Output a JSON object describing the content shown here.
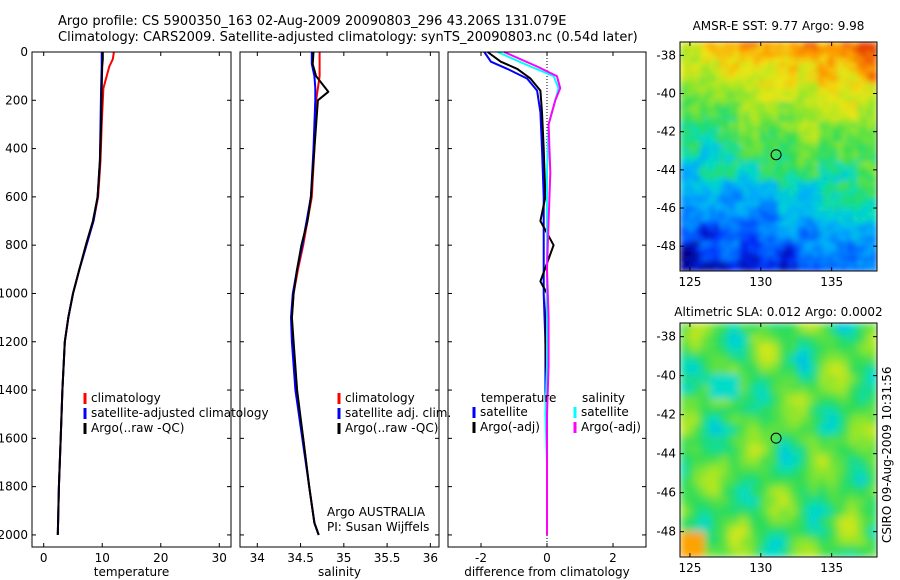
{
  "header": {
    "line1": "Argo profile: CS 5900350_163 02-Aug-2009 20090803_296 43.206S 131.079E",
    "line2": "Climatology: CARS2009. Satellite-adjusted climatology: synTS_20090803.nc (0.54d later)"
  },
  "side_stamp": "CSIRO 09-Aug-2009 10:31:56",
  "colors": {
    "climatology": "#ff0000",
    "satellite": "#0000ff",
    "argo": "#000000",
    "salinity_satellite": "#00ffff",
    "salinity_argo": "#ff00ff"
  },
  "chart_data": [
    {
      "type": "line",
      "id": "temperature",
      "xlabel": "temperature",
      "ylabel": "",
      "xlim": [
        -2,
        32
      ],
      "ylim": [
        2050,
        0
      ],
      "xticks": [
        0,
        10,
        20,
        30
      ],
      "yticks": [
        0,
        200,
        400,
        600,
        800,
        1000,
        1200,
        1400,
        1600,
        1800,
        2000
      ],
      "legend": [
        "climatology",
        "satellite-adjusted climatology",
        "Argo(..raw -QC)"
      ],
      "series": [
        {
          "name": "climatology",
          "color": "#ff0000",
          "x": [
            12.0,
            11.8,
            11.2,
            10.2,
            9.9,
            9.7,
            9.3,
            8.5,
            7.3,
            6.1,
            5.0,
            4.2,
            3.6,
            3.2,
            2.9,
            2.6,
            2.4
          ],
          "y": [
            0,
            30,
            60,
            150,
            300,
            450,
            600,
            700,
            800,
            900,
            1000,
            1100,
            1200,
            1400,
            1600,
            1800,
            2000
          ]
        },
        {
          "name": "satellite-adjusted climatology",
          "color": "#0000ff",
          "x": [
            9.9,
            9.9,
            9.9,
            9.8,
            9.7,
            9.6,
            9.2,
            8.5,
            7.3,
            6.1,
            5.0,
            4.2,
            3.6,
            3.2,
            2.9,
            2.6,
            2.4
          ],
          "y": [
            0,
            30,
            60,
            150,
            300,
            450,
            600,
            700,
            800,
            900,
            1000,
            1100,
            1200,
            1400,
            1600,
            1800,
            2000
          ]
        },
        {
          "name": "Argo(..raw -QC)",
          "color": "#000000",
          "x": [
            10.1,
            10.1,
            10.0,
            9.9,
            9.8,
            9.6,
            9.2,
            8.4,
            7.2,
            6.1,
            5.0,
            4.2,
            3.6,
            3.2,
            2.9,
            2.6,
            2.4
          ],
          "y": [
            0,
            30,
            60,
            150,
            300,
            450,
            600,
            700,
            800,
            900,
            1000,
            1100,
            1200,
            1400,
            1600,
            1800,
            2000
          ]
        }
      ]
    },
    {
      "type": "line",
      "id": "salinity",
      "xlabel": "salinity",
      "ylabel": "",
      "xlim": [
        33.8,
        36.1
      ],
      "ylim": [
        2050,
        0
      ],
      "xticks": [
        34,
        34.5,
        35,
        35.5,
        36
      ],
      "yticks": [
        0,
        200,
        400,
        600,
        800,
        1000,
        1200,
        1400,
        1600,
        1800,
        2000
      ],
      "legend": [
        "climatology",
        "satellite adj. clim.",
        "Argo(..raw -QC)"
      ],
      "annotation": [
        "Argo AUSTRALIA",
        "PI: Susan Wijffels"
      ],
      "series": [
        {
          "name": "climatology",
          "color": "#ff0000",
          "x": [
            34.72,
            34.72,
            34.72,
            34.7,
            34.68,
            34.66,
            34.63,
            34.58,
            34.53,
            34.47,
            34.42,
            34.4,
            34.41,
            34.45,
            34.53,
            34.6,
            34.66,
            34.71
          ],
          "y": [
            0,
            50,
            100,
            150,
            200,
            400,
            600,
            700,
            800,
            900,
            1000,
            1100,
            1200,
            1400,
            1600,
            1800,
            1950,
            2000
          ]
        },
        {
          "name": "satellite adj. clim.",
          "color": "#0000ff",
          "x": [
            34.63,
            34.63,
            34.66,
            34.67,
            34.67,
            34.65,
            34.62,
            34.57,
            34.52,
            34.46,
            34.41,
            34.39,
            34.4,
            34.44,
            34.52,
            34.6,
            34.66,
            34.71
          ],
          "y": [
            0,
            50,
            100,
            150,
            200,
            400,
            600,
            700,
            800,
            900,
            1000,
            1100,
            1200,
            1400,
            1600,
            1800,
            1950,
            2000
          ]
        },
        {
          "name": "Argo(..raw -QC)",
          "color": "#000000",
          "x": [
            34.65,
            34.64,
            34.68,
            34.82,
            34.7,
            34.66,
            34.62,
            34.58,
            34.51,
            34.46,
            34.42,
            34.4,
            34.42,
            34.46,
            34.53,
            34.6,
            34.66,
            34.71
          ],
          "y": [
            0,
            50,
            100,
            165,
            200,
            400,
            600,
            700,
            800,
            900,
            1000,
            1100,
            1200,
            1400,
            1600,
            1800,
            1950,
            2000
          ]
        }
      ]
    },
    {
      "type": "line",
      "id": "difference",
      "xlabel": "difference from climatology",
      "ylabel": "",
      "xlim": [
        -3,
        3
      ],
      "ylim": [
        2050,
        0
      ],
      "xticks": [
        -2,
        0,
        2
      ],
      "yticks": [
        0,
        200,
        400,
        600,
        800,
        1000,
        1200,
        1400,
        1600,
        1800,
        2000
      ],
      "legend_temperature_title": "temperature",
      "legend_salinity_title": "salinity",
      "legend_temperature": [
        "satellite",
        "Argo(-adj)"
      ],
      "legend_salinity": [
        "satellite",
        "Argo(-adj)"
      ],
      "series": [
        {
          "name": "temperature satellite",
          "color": "#0000ff",
          "x": [
            -1.9,
            -1.7,
            -1.2,
            -0.6,
            -0.3,
            -0.2,
            -0.15,
            -0.1,
            -0.1,
            -0.1,
            -0.1,
            -0.05,
            -0.05,
            0,
            0,
            0
          ],
          "y": [
            0,
            40,
            70,
            110,
            160,
            250,
            400,
            600,
            800,
            900,
            1000,
            1200,
            1400,
            1600,
            1800,
            2000
          ]
        },
        {
          "name": "temperature Argo(-adj)",
          "color": "#000000",
          "x": [
            -1.8,
            -1.4,
            -0.9,
            -0.5,
            -0.2,
            -0.15,
            -0.1,
            -0.05,
            -0.2,
            0.2,
            -0.2,
            0,
            -0.05,
            0,
            0,
            0
          ],
          "y": [
            0,
            40,
            70,
            110,
            160,
            250,
            400,
            600,
            700,
            800,
            950,
            1000,
            1200,
            1400,
            1700,
            2000
          ]
        },
        {
          "name": "salinity satellite",
          "color": "#00ffff",
          "x": [
            -1.5,
            -0.5,
            0.2,
            0.35,
            0.25,
            0.05,
            0,
            0,
            0,
            0,
            0,
            -0.05,
            0,
            0,
            0
          ],
          "y": [
            0,
            60,
            100,
            150,
            200,
            300,
            500,
            700,
            900,
            1100,
            1300,
            1500,
            1700,
            1900,
            2000
          ]
        },
        {
          "name": "salinity Argo(-adj)",
          "color": "#ff00ff",
          "x": [
            -1.3,
            -0.3,
            0.3,
            0.4,
            0.25,
            0.05,
            0.1,
            0.05,
            0,
            0.05,
            0.05,
            0,
            0,
            0,
            0
          ],
          "y": [
            0,
            60,
            100,
            150,
            200,
            300,
            500,
            700,
            900,
            1100,
            1300,
            1500,
            1700,
            1900,
            2000
          ]
        }
      ]
    },
    {
      "type": "heatmap",
      "id": "sst",
      "title": "AMSR-E SST: 9.77 Argo: 9.98",
      "xlim": [
        124.3,
        138.2
      ],
      "ylim": [
        -49.3,
        -37.3
      ],
      "xticks": [
        125,
        130,
        135
      ],
      "yticks": [
        -38,
        -40,
        -42,
        -44,
        -46,
        -48
      ],
      "marker": {
        "lon": 131.079,
        "lat": -43.206
      }
    },
    {
      "type": "heatmap",
      "id": "sla",
      "title": "Altimetric SLA: 0.012 Argo: 0.0002",
      "xlim": [
        124.3,
        138.2
      ],
      "ylim": [
        -49.3,
        -37.3
      ],
      "xticks": [
        125,
        130,
        135
      ],
      "yticks": [
        -38,
        -40,
        -42,
        -44,
        -46,
        -48
      ],
      "marker": {
        "lon": 131.079,
        "lat": -43.206
      }
    }
  ]
}
